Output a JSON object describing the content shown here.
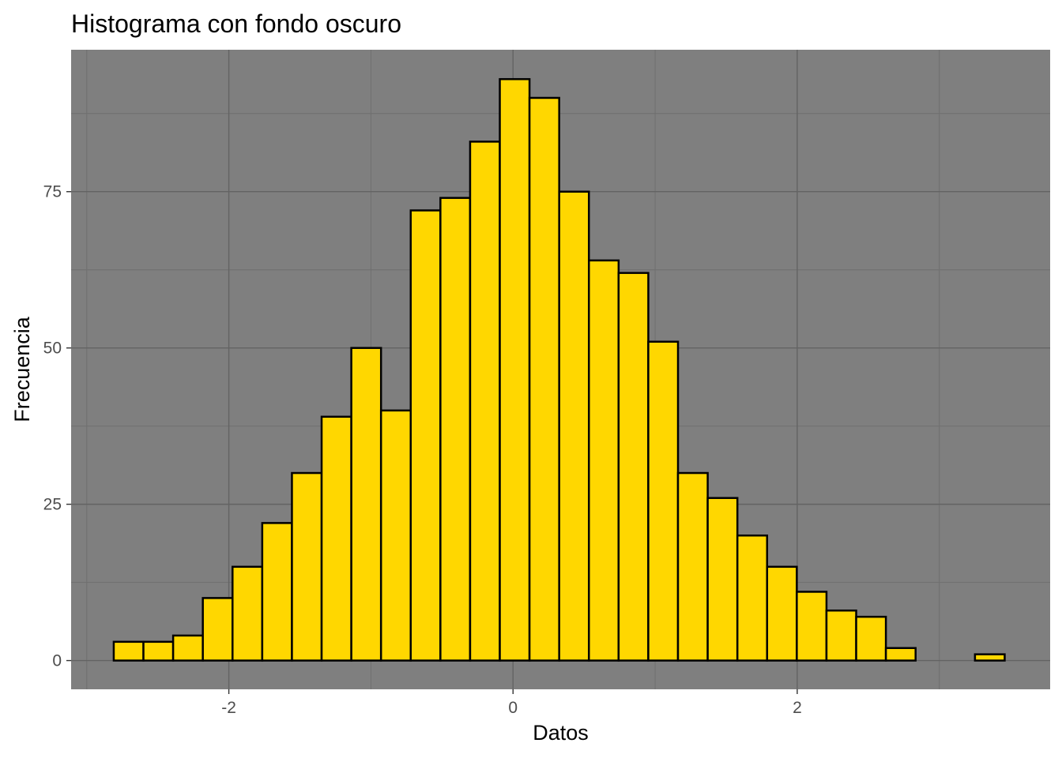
{
  "chart_data": {
    "type": "bar",
    "title": "Histograma con fondo oscuro",
    "xlabel": "Datos",
    "ylabel": "Frecuencia",
    "xlim": [
      -3.11,
      3.78
    ],
    "ylim": [
      -4.6,
      97.7
    ],
    "x_ticks": [
      "-2",
      "0",
      "2"
    ],
    "x_tick_values": [
      -2,
      0,
      2
    ],
    "y_ticks": [
      "0",
      "25",
      "50",
      "75"
    ],
    "y_tick_values": [
      0,
      25,
      50,
      75
    ],
    "bins": 30,
    "bin_start": -2.81,
    "bin_width": 0.209,
    "values": [
      3,
      3,
      4,
      10,
      15,
      22,
      30,
      39,
      50,
      40,
      72,
      74,
      83,
      93,
      90,
      75,
      64,
      62,
      51,
      30,
      26,
      20,
      15,
      11,
      8,
      7,
      2,
      0,
      0,
      1
    ],
    "grid": true,
    "colors": {
      "panel_background": "#7f7f7f",
      "grid_major": "#636363",
      "grid_minor": "#6f6f6f",
      "bar_fill": "#ffd700",
      "bar_outline": "#000000"
    }
  }
}
